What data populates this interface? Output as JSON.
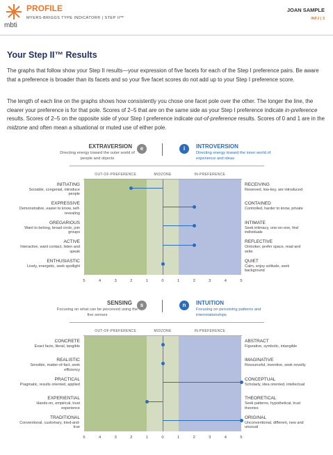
{
  "header": {
    "brand": "mbti",
    "title": "PROFILE",
    "subtitle": "MYERS-BRIGGS TYPE INDICATOR® | STEP II™",
    "name": "JOAN SAMPLE",
    "type": "INFJ | 3"
  },
  "title": "Your Step II™ Results",
  "paragraphs": [
    [
      {
        "text": "The graphs that follow show your Step II results—your expression of five facets for each of the Step I preference pairs. Be aware that a preference is broader than its facets and so your five facet scores do not add up to your Step I preference score."
      }
    ],
    [
      {
        "text": "The length of each line on the graphs shows how consistently you chose one facet pole over the other. The longer the line, the clearer your preference is for that pole. Scores of 2–5 that are on the same side as your Step I preference indicate "
      },
      {
        "text": "in-preference",
        "style": "italic"
      },
      {
        "text": " results. Scores of 2–5 on the opposite side of your Step I preference indicate "
      },
      {
        "text": "out-of-preference",
        "style": "italic"
      },
      {
        "text": " results. Scores of 0 and 1 are in the "
      },
      {
        "text": "midzone",
        "style": "italic"
      },
      {
        "text": " and often mean a situational or muted use of either pole."
      }
    ]
  ],
  "charts": [
    {
      "left_pole": {
        "letter": "e",
        "name": "EXTRAVERSION",
        "description": "Directing energy toward the outer world of people and objects"
      },
      "right_pole": {
        "letter": "i",
        "name": "INTROVERSION",
        "description": "Directing energy toward the inner world of experience and ideas"
      },
      "zones": [
        {
          "label": "OUT-OF-PREFERENCE",
          "range": [
            -5,
            -1
          ],
          "color": "#b3c590"
        },
        {
          "label": "MIDZONE",
          "range": [
            -1,
            1
          ],
          "color": "#d4dcc1"
        },
        {
          "label": "IN-PREFERENCE",
          "range": [
            1,
            5
          ],
          "color": "#b4bfe0"
        }
      ],
      "xlim": [
        -5,
        5
      ],
      "xticks": [
        {
          "value": -5,
          "label": "5"
        },
        {
          "value": -4,
          "label": "4"
        },
        {
          "value": -3,
          "label": "3"
        },
        {
          "value": -2,
          "label": "2"
        },
        {
          "value": -1,
          "label": "1"
        },
        0,
        1,
        2,
        3,
        4,
        5
      ],
      "color": "#2e6cb5",
      "facets": [
        {
          "left": {
            "name": "INITIATING",
            "description": "Sociable, congenial, introduce people"
          },
          "right": {
            "name": "RECEIVING",
            "description": "Reserved, low-key, are introduced"
          },
          "score": -2
        },
        {
          "left": {
            "name": "EXPRESSIVE",
            "description": "Demonstrative, easier to know, self-revealing"
          },
          "right": {
            "name": "CONTAINED",
            "description": "Controlled, harder to know, private"
          },
          "score": 2
        },
        {
          "left": {
            "name": "GREGARIOUS",
            "description": "Want to belong, broad circle, join groups"
          },
          "right": {
            "name": "INTIMATE",
            "description": "Seek intimacy, one-on-one, find individuals"
          },
          "score": 2
        },
        {
          "left": {
            "name": "ACTIVE",
            "description": "Interactive, want contact, listen and speak"
          },
          "right": {
            "name": "REFLECTIVE",
            "description": "Onlooker, prefer space, read and write"
          },
          "score": 2
        },
        {
          "left": {
            "name": "ENTHUSIASTIC",
            "description": "Lively, energetic, seek spotlight"
          },
          "right": {
            "name": "QUIET",
            "description": "Calm, enjoy solitude, seek background"
          },
          "score": 0
        }
      ]
    },
    {
      "left_pole": {
        "letter": "s",
        "name": "SENSING",
        "description": "Focusing on what can be perceived using the five senses"
      },
      "right_pole": {
        "letter": "n",
        "name": "INTUITION",
        "description": "Focusing on perceiving patterns and interrelationships"
      },
      "zones": [
        {
          "label": "OUT-OF-PREFERENCE",
          "range": [
            -5,
            -1
          ],
          "color": "#b3c590"
        },
        {
          "label": "MIDZONE",
          "range": [
            -1,
            1
          ],
          "color": "#d4dcc1"
        },
        {
          "label": "IN-PREFERENCE",
          "range": [
            1,
            5
          ],
          "color": "#b4bfe0"
        }
      ],
      "xlim": [
        -5,
        5
      ],
      "xticks": [
        {
          "value": -5,
          "label": "5"
        },
        {
          "value": -4,
          "label": "4"
        },
        {
          "value": -3,
          "label": "3"
        },
        {
          "value": -2,
          "label": "2"
        },
        {
          "value": -1,
          "label": "1"
        },
        0,
        1,
        2,
        3,
        4,
        5
      ],
      "color": "#2e6cb5",
      "facets": [
        {
          "left": {
            "name": "CONCRETE",
            "description": "Exact facts, literal, tangible"
          },
          "right": {
            "name": "ABSTRACT",
            "description": "Figurative, symbolic, intangible"
          },
          "score": 0
        },
        {
          "left": {
            "name": "REALISTIC",
            "description": "Sensible, matter-of-fact, seek efficiency"
          },
          "right": {
            "name": "IMAGINATIVE",
            "description": "Resourceful, inventive, seek novelty"
          },
          "score": 0
        },
        {
          "left": {
            "name": "PRACTICAL",
            "description": "Pragmatic, results oriented, applied"
          },
          "right": {
            "name": "CONCEPTUAL",
            "description": "Scholarly, idea oriented, intellectual"
          },
          "score": 5
        },
        {
          "left": {
            "name": "EXPERIENTIAL",
            "description": "Hands-on, empirical, trust experience"
          },
          "right": {
            "name": "THEORETICAL",
            "description": "Seek patterns, hypothetical, trust theories"
          },
          "score": -1
        },
        {
          "left": {
            "name": "TRADITIONAL",
            "description": "Conventional, customary, tried-and-true"
          },
          "right": {
            "name": "ORIGINAL",
            "description": "Unconventional, different, new and unusual"
          },
          "score": 5
        }
      ]
    }
  ]
}
